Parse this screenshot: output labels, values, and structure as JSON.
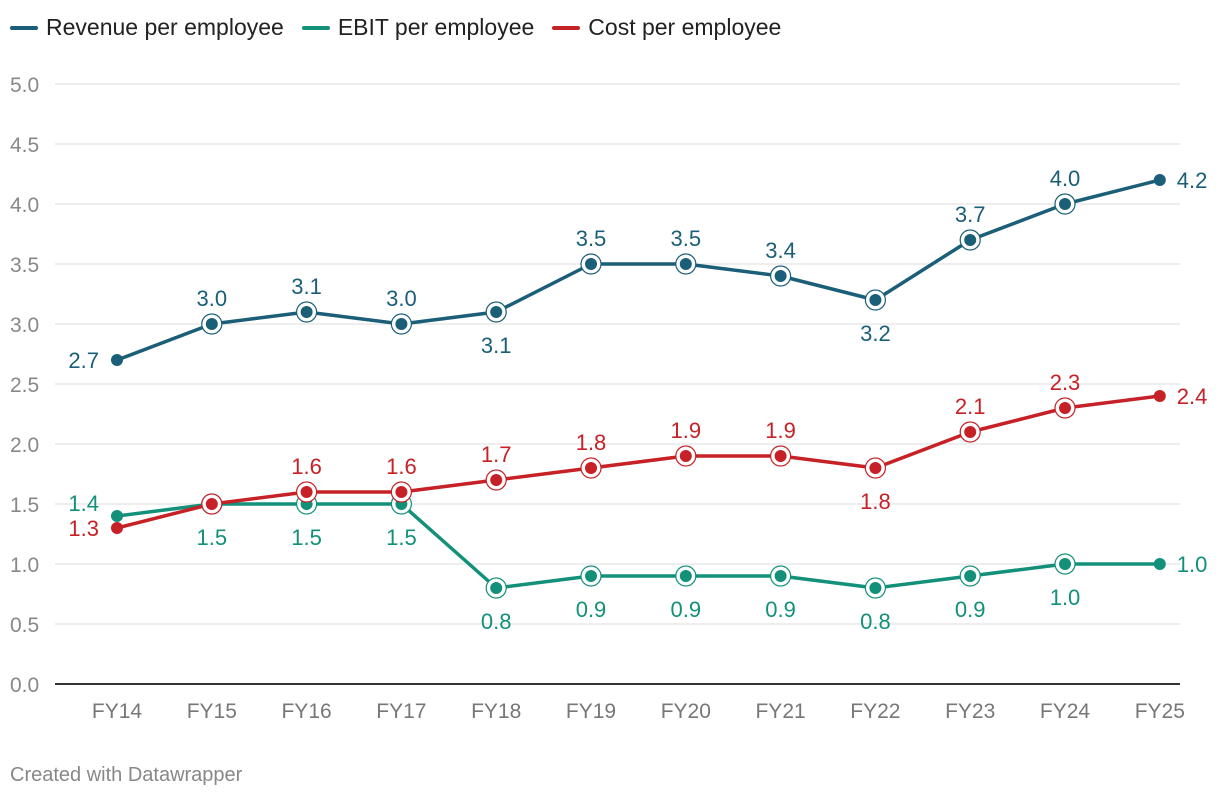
{
  "chart_data": {
    "type": "line",
    "categories": [
      "FY14",
      "FY15",
      "FY16",
      "FY17",
      "FY18",
      "FY19",
      "FY20",
      "FY21",
      "FY22",
      "FY23",
      "FY24",
      "FY25"
    ],
    "series": [
      {
        "name": "Revenue per employee",
        "color": "#1a5e78",
        "values": [
          2.7,
          3.0,
          3.1,
          3.0,
          3.1,
          3.5,
          3.5,
          3.4,
          3.2,
          3.7,
          4.0,
          4.2
        ],
        "labels": [
          "2.7",
          "3.0",
          "3.1",
          "3.0",
          "3.1",
          "3.5",
          "3.5",
          "3.4",
          "3.2",
          "3.7",
          "4.0",
          "4.2"
        ]
      },
      {
        "name": "EBIT per employee",
        "color": "#12907a",
        "values": [
          1.4,
          1.5,
          1.5,
          1.5,
          0.8,
          0.9,
          0.9,
          0.9,
          0.8,
          0.9,
          1.0,
          1.0
        ],
        "labels": [
          "1.4",
          "1.5",
          "1.5",
          "1.5",
          "0.8",
          "0.9",
          "0.9",
          "0.9",
          "0.8",
          "0.9",
          "1.0",
          "1.0"
        ]
      },
      {
        "name": "Cost per employee",
        "color": "#c62126",
        "values": [
          1.3,
          1.5,
          1.6,
          1.6,
          1.7,
          1.8,
          1.9,
          1.9,
          1.8,
          2.1,
          2.3,
          2.4
        ],
        "labels": [
          "1.3",
          "1.5",
          "1.6",
          "1.6",
          "1.7",
          "1.8",
          "1.9",
          "1.9",
          "1.8",
          "2.1",
          "2.3",
          "2.4"
        ]
      }
    ],
    "y_ticks": [
      "0.0",
      "0.5",
      "1.0",
      "1.5",
      "2.0",
      "2.5",
      "3.0",
      "3.5",
      "4.0",
      "4.5",
      "5.0"
    ],
    "ylim": [
      0,
      5
    ],
    "grid": true,
    "legend_position": "top-left",
    "title": "",
    "xlabel": "",
    "ylabel": ""
  },
  "credit": "Created with Datawrapper"
}
